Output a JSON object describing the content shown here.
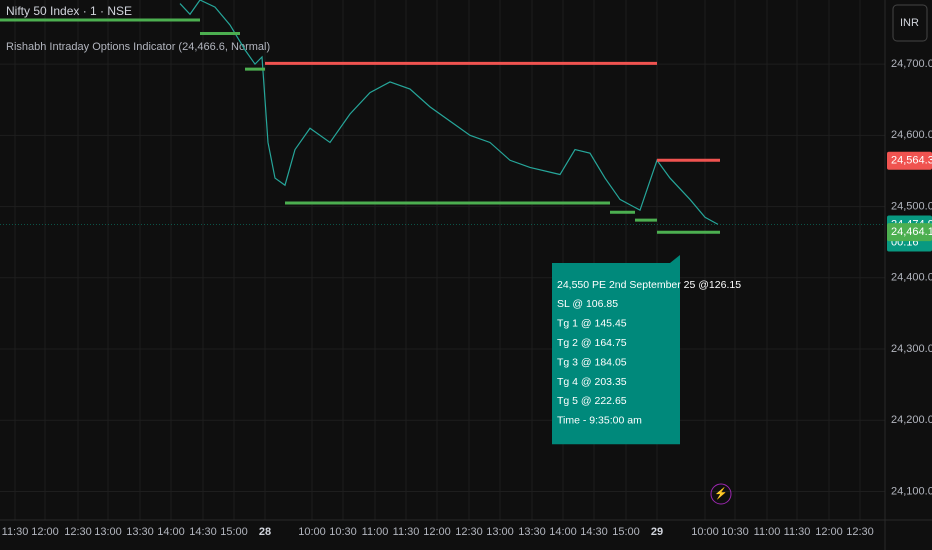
{
  "header": {
    "symbol": "Nifty 50 Index · 1 · NSE",
    "indicator": "Rishabh Intraday Options Indicator (24,466.6, Normal)",
    "currency": "INR"
  },
  "chart_data": {
    "type": "line",
    "xlim": [
      0,
      885
    ],
    "ylim": [
      24060,
      24790
    ],
    "xticks": [
      {
        "value": 15,
        "label": "11:30"
      },
      {
        "value": 45,
        "label": "12:00"
      },
      {
        "value": 78,
        "label": "12:30"
      },
      {
        "value": 108,
        "label": "13:00"
      },
      {
        "value": 140,
        "label": "13:30"
      },
      {
        "value": 171,
        "label": "14:00"
      },
      {
        "value": 203,
        "label": "14:30"
      },
      {
        "value": 234,
        "label": "15:00"
      },
      {
        "value": 265,
        "label": "28"
      },
      {
        "value": 312,
        "label": "10:00"
      },
      {
        "value": 343,
        "label": "10:30"
      },
      {
        "value": 375,
        "label": "11:00"
      },
      {
        "value": 406,
        "label": "11:30"
      },
      {
        "value": 437,
        "label": "12:00"
      },
      {
        "value": 469,
        "label": "12:30"
      },
      {
        "value": 500,
        "label": "13:00"
      },
      {
        "value": 532,
        "label": "13:30"
      },
      {
        "value": 563,
        "label": "14:00"
      },
      {
        "value": 594,
        "label": "14:30"
      },
      {
        "value": 626,
        "label": "15:00"
      },
      {
        "value": 657,
        "label": "29"
      },
      {
        "value": 705,
        "label": "10:00"
      },
      {
        "value": 735,
        "label": "10:30"
      },
      {
        "value": 767,
        "label": "11:00"
      },
      {
        "value": 797,
        "label": "11:30"
      },
      {
        "value": 829,
        "label": "12:00"
      },
      {
        "value": 860,
        "label": "12:30"
      }
    ],
    "yticks": [
      {
        "value": 24700,
        "label": "24,700.00"
      },
      {
        "value": 24600,
        "label": "24,600.00"
      },
      {
        "value": 24500,
        "label": "24,500.00"
      },
      {
        "value": 24400,
        "label": "24,400.00"
      },
      {
        "value": 24300,
        "label": "24,300.00"
      },
      {
        "value": 24200,
        "label": "24,200.00"
      },
      {
        "value": 24100,
        "label": "24,100.00"
      }
    ],
    "grid": true,
    "series": [
      {
        "name": "Nifty 50",
        "color": "#26a69a",
        "x": [
          180,
          190,
          200,
          215,
          230,
          245,
          255,
          262,
          265,
          268,
          275,
          285,
          295,
          310,
          330,
          350,
          370,
          390,
          410,
          430,
          450,
          470,
          490,
          510,
          530,
          560,
          575,
          590,
          605,
          620,
          640,
          657,
          670,
          690,
          705,
          718
        ],
        "values": [
          24785,
          24770,
          24790,
          24780,
          24755,
          24720,
          24700,
          24710,
          24650,
          24590,
          24540,
          24530,
          24580,
          24610,
          24590,
          24630,
          24660,
          24675,
          24665,
          24640,
          24620,
          24600,
          24590,
          24565,
          24555,
          24545,
          24580,
          24575,
          24540,
          24510,
          24495,
          24565,
          24540,
          24510,
          24485,
          24475
        ]
      }
    ],
    "levels": [
      {
        "color": "#4caf50",
        "x": [
          0,
          200
        ],
        "values": [
          24762,
          24762
        ]
      },
      {
        "color": "#4caf50",
        "x": [
          200,
          240
        ],
        "values": [
          24743,
          24743
        ]
      },
      {
        "color": "#4caf50",
        "x": [
          245,
          265
        ],
        "values": [
          24693,
          24693
        ]
      },
      {
        "color": "#f05350",
        "x": [
          265,
          657
        ],
        "values": [
          24701,
          24701
        ]
      },
      {
        "color": "#4caf50",
        "x": [
          285,
          610
        ],
        "values": [
          24505,
          24505
        ]
      },
      {
        "color": "#4caf50",
        "x": [
          610,
          635
        ],
        "values": [
          24492,
          24492
        ]
      },
      {
        "color": "#4caf50",
        "x": [
          635,
          657
        ],
        "values": [
          24481,
          24481
        ]
      },
      {
        "color": "#f05350",
        "x": [
          657,
          720
        ],
        "values": [
          24565,
          24565
        ]
      },
      {
        "color": "#4caf50",
        "x": [
          657,
          720
        ],
        "values": [
          24464,
          24464
        ]
      }
    ],
    "price_tags": [
      {
        "value": 24564.35,
        "label": "24,564.35",
        "color": "#f05350"
      },
      {
        "value": 24474.9,
        "label": "24,474.90",
        "countdown": "00:16",
        "color": "#089981"
      },
      {
        "value": 24464.15,
        "label": "24,464.15",
        "color": "#4caf50"
      }
    ]
  },
  "signal_box": {
    "lines": [
      "24,550 PE 2nd  September 25 @126.15",
      "SL  @ 106.85",
      "Tg 1 @ 145.45",
      "Tg 2 @ 164.75",
      "Tg 3 @ 184.05",
      "Tg 4 @ 203.35",
      "Tg 5 @ 222.65",
      "Time - 9:35:00 am"
    ]
  }
}
